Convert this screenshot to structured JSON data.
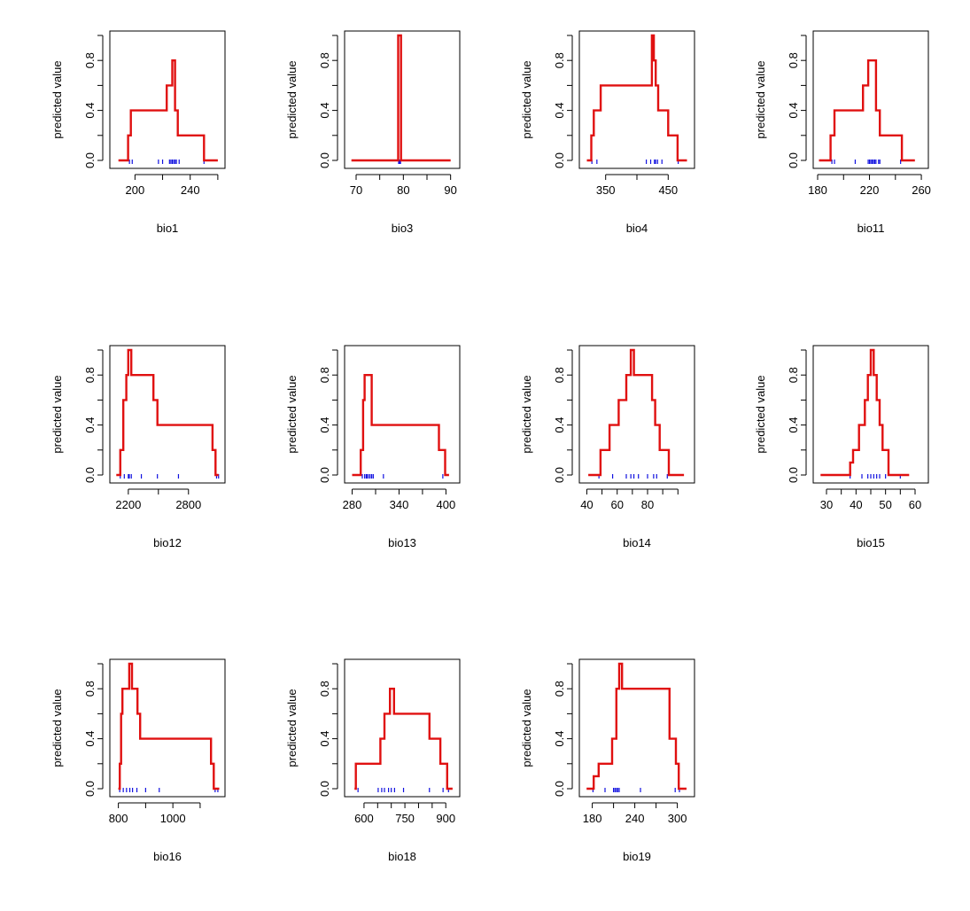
{
  "figure": {
    "curve_color": "#e01010",
    "rug_color": "#1010e0"
  },
  "chart_data": [
    {
      "type": "line",
      "title": "",
      "xlabel": "bio1",
      "ylabel": "predicted value",
      "xlim": [
        185,
        262
      ],
      "ylim": [
        0,
        1
      ],
      "xticks": [
        180,
        200,
        220,
        240,
        260
      ],
      "xticklabels": [
        "",
        "200",
        "",
        "240",
        ""
      ],
      "yticks": [
        0,
        0.2,
        0.4,
        0.6,
        0.8,
        1.0
      ],
      "yticklabels": [
        "0.0",
        "",
        "0.4",
        "",
        "0.8",
        ""
      ],
      "series": [
        {
          "x": [
            188,
            195,
            195,
            197,
            197,
            223,
            223,
            227,
            227,
            229,
            229,
            231,
            231,
            250,
            250,
            260
          ],
          "y": [
            0,
            0,
            0.2,
            0.2,
            0.4,
            0.4,
            0.6,
            0.6,
            0.8,
            0.8,
            0.4,
            0.4,
            0.2,
            0.2,
            0,
            0
          ]
        }
      ],
      "rug": [
        196,
        198,
        217,
        220,
        225,
        226,
        227,
        228,
        229,
        230,
        232,
        250
      ]
    },
    {
      "type": "line",
      "title": "",
      "xlabel": "bio3",
      "ylabel": "predicted value",
      "xlim": [
        68.5,
        91
      ],
      "ylim": [
        0,
        1
      ],
      "xticks": [
        70,
        75,
        80,
        85,
        90
      ],
      "xticklabels": [
        "70",
        "",
        "80",
        "",
        "90"
      ],
      "yticks": [
        0,
        0.2,
        0.4,
        0.6,
        0.8,
        1.0
      ],
      "yticklabels": [
        "0.0",
        "",
        "0.4",
        "",
        "0.8",
        ""
      ],
      "series": [
        {
          "x": [
            69,
            78.9,
            78.9,
            79.5,
            79.5,
            90
          ],
          "y": [
            0,
            0,
            1,
            1,
            0,
            0
          ]
        }
      ],
      "rug": [
        79,
        79.2,
        79.4
      ]
    },
    {
      "type": "line",
      "title": "",
      "xlabel": "bio4",
      "ylabel": "predicted value",
      "xlim": [
        315,
        485
      ],
      "ylim": [
        0,
        1
      ],
      "xticks": [
        350,
        400,
        450
      ],
      "xticklabels": [
        "350",
        "",
        "450"
      ],
      "yticks": [
        0,
        0.2,
        0.4,
        0.6,
        0.8,
        1.0
      ],
      "yticklabels": [
        "0.0",
        "",
        "0.4",
        "",
        "0.8",
        ""
      ],
      "series": [
        {
          "x": [
            320,
            327,
            327,
            331,
            331,
            342,
            342,
            424,
            424,
            427,
            427,
            430,
            430,
            434,
            434,
            450,
            450,
            465,
            465,
            470,
            470,
            480
          ],
          "y": [
            0,
            0,
            0.2,
            0.2,
            0.4,
            0.4,
            0.6,
            0.6,
            1,
            1,
            0.8,
            0.8,
            0.6,
            0.6,
            0.4,
            0.4,
            0.2,
            0.2,
            0,
            0,
            0,
            0
          ]
        }
      ],
      "rug": [
        328,
        336,
        415,
        422,
        428,
        430,
        433,
        440,
        466
      ]
    },
    {
      "type": "line",
      "title": "",
      "xlabel": "bio11",
      "ylabel": "predicted value",
      "xlim": [
        180,
        262
      ],
      "ylim": [
        0,
        1
      ],
      "xticks": [
        180,
        200,
        220,
        240,
        260
      ],
      "xticklabels": [
        "180",
        "",
        "220",
        "",
        "260"
      ],
      "yticks": [
        0,
        0.2,
        0.4,
        0.6,
        0.8,
        1.0
      ],
      "yticklabels": [
        "0.0",
        "",
        "0.4",
        "",
        "0.8",
        ""
      ],
      "series": [
        {
          "x": [
            181,
            190,
            190,
            193,
            193,
            215,
            215,
            219,
            219,
            225,
            225,
            228,
            228,
            245,
            245,
            255
          ],
          "y": [
            0,
            0,
            0.2,
            0.2,
            0.4,
            0.4,
            0.6,
            0.6,
            0.8,
            0.8,
            0.4,
            0.4,
            0.2,
            0.2,
            0,
            0
          ]
        }
      ],
      "rug": [
        191,
        193,
        209,
        219,
        220,
        221,
        222,
        223,
        224,
        225,
        227,
        228,
        244
      ]
    },
    {
      "type": "line",
      "title": "",
      "xlabel": "bio12",
      "ylabel": "predicted value",
      "xlim": [
        2060,
        3120
      ],
      "ylim": [
        0,
        1
      ],
      "xticks": [
        2200,
        2500,
        2800
      ],
      "xticklabels": [
        "2200",
        "",
        "2800"
      ],
      "yticks": [
        0,
        0.2,
        0.4,
        0.6,
        0.8,
        1.0
      ],
      "yticklabels": [
        "0.0",
        "",
        "0.4",
        "",
        "0.8",
        ""
      ],
      "series": [
        {
          "x": [
            2080,
            2120,
            2120,
            2150,
            2150,
            2180,
            2180,
            2200,
            2200,
            2230,
            2230,
            2450,
            2450,
            2490,
            2490,
            3040,
            3040,
            3070,
            3070,
            3100
          ],
          "y": [
            0,
            0,
            0.2,
            0.2,
            0.6,
            0.6,
            0.8,
            0.8,
            1,
            1,
            0.8,
            0.8,
            0.6,
            0.6,
            0.4,
            0.4,
            0.2,
            0.2,
            0,
            0
          ]
        }
      ],
      "rug": [
        2120,
        2160,
        2200,
        2210,
        2230,
        2330,
        2490,
        2700,
        3080,
        3100
      ]
    },
    {
      "type": "line",
      "title": "",
      "xlabel": "bio13",
      "ylabel": "predicted value",
      "xlim": [
        276,
        412
      ],
      "ylim": [
        0,
        1
      ],
      "xticks": [
        280,
        310,
        340,
        370,
        400
      ],
      "xticklabels": [
        "280",
        "",
        "340",
        "",
        "400"
      ],
      "yticks": [
        0,
        0.2,
        0.4,
        0.6,
        0.8,
        1.0
      ],
      "yticklabels": [
        "0.0",
        "",
        "0.4",
        "",
        "0.8",
        ""
      ],
      "series": [
        {
          "x": [
            280,
            291,
            291,
            294,
            294,
            296,
            296,
            305,
            305,
            391,
            391,
            399,
            399,
            404
          ],
          "y": [
            0,
            0,
            0.2,
            0.2,
            0.6,
            0.6,
            0.8,
            0.8,
            0.4,
            0.4,
            0.2,
            0.2,
            0,
            0
          ]
        }
      ],
      "rug": [
        293,
        296,
        298,
        299,
        301,
        303,
        305,
        307,
        320,
        396
      ]
    },
    {
      "type": "line",
      "title": "",
      "xlabel": "bio14",
      "ylabel": "predicted value",
      "xlim": [
        38,
        108
      ],
      "ylim": [
        0,
        1
      ],
      "xticks": [
        40,
        50,
        60,
        70,
        80,
        90,
        100
      ],
      "xticklabels": [
        "40",
        "",
        "60",
        "",
        "80",
        "",
        ""
      ],
      "yticks": [
        0,
        0.2,
        0.4,
        0.6,
        0.8,
        1.0
      ],
      "yticklabels": [
        "0.0",
        "",
        "0.4",
        "",
        "0.8",
        ""
      ],
      "series": [
        {
          "x": [
            41,
            49,
            49,
            55,
            55,
            61,
            61,
            66,
            66,
            69,
            69,
            71,
            71,
            79,
            79,
            83,
            83,
            85,
            85,
            88,
            88,
            94,
            94,
            104
          ],
          "y": [
            0,
            0,
            0.2,
            0.2,
            0.4,
            0.4,
            0.6,
            0.6,
            0.8,
            0.8,
            1,
            1,
            0.8,
            0.8,
            0.8,
            0.8,
            0.6,
            0.6,
            0.4,
            0.4,
            0.2,
            0.2,
            0,
            0
          ]
        }
      ],
      "rug": [
        48,
        57,
        66,
        69,
        71,
        74,
        80,
        84,
        86,
        93
      ]
    },
    {
      "type": "line",
      "title": "",
      "xlabel": "bio15",
      "ylabel": "predicted value",
      "xlim": [
        27,
        63
      ],
      "ylim": [
        0,
        1
      ],
      "xticks": [
        30,
        35,
        40,
        45,
        50,
        55,
        60
      ],
      "xticklabels": [
        "30",
        "",
        "40",
        "",
        "50",
        "",
        "60"
      ],
      "yticks": [
        0,
        0.2,
        0.4,
        0.6,
        0.8,
        1.0
      ],
      "yticklabels": [
        "0.0",
        "",
        "0.4",
        "",
        "0.8",
        ""
      ],
      "series": [
        {
          "x": [
            28,
            38,
            38,
            39,
            39,
            41,
            41,
            43,
            43,
            44,
            44,
            45,
            45,
            46,
            46,
            47,
            47,
            48,
            48,
            49,
            49,
            51,
            51,
            58
          ],
          "y": [
            0,
            0,
            0.1,
            0.1,
            0.2,
            0.2,
            0.4,
            0.4,
            0.6,
            0.6,
            0.8,
            0.8,
            1,
            1,
            0.8,
            0.8,
            0.6,
            0.6,
            0.4,
            0.4,
            0.2,
            0.2,
            0,
            0
          ]
        }
      ],
      "rug": [
        38,
        42,
        44,
        45,
        46,
        47,
        48,
        50,
        55
      ]
    },
    {
      "type": "line",
      "title": "",
      "xlabel": "bio16",
      "ylabel": "predicted value",
      "xlim": [
        785,
        1175
      ],
      "ylim": [
        0,
        1
      ],
      "xticks": [
        800,
        900,
        1000,
        1100
      ],
      "xticklabels": [
        "800",
        "",
        "1000",
        ""
      ],
      "yticks": [
        0,
        0.2,
        0.4,
        0.6,
        0.8,
        1.0
      ],
      "yticklabels": [
        "0.0",
        "",
        "0.4",
        "",
        "0.8",
        ""
      ],
      "series": [
        {
          "x": [
            800,
            805,
            805,
            810,
            810,
            815,
            815,
            840,
            840,
            850,
            850,
            870,
            870,
            880,
            880,
            1140,
            1140,
            1150,
            1150,
            1160,
            1160,
            1170
          ],
          "y": [
            0,
            0,
            0.2,
            0.2,
            0.6,
            0.6,
            0.8,
            0.8,
            1,
            1,
            0.8,
            0.8,
            0.6,
            0.6,
            0.4,
            0.4,
            0.2,
            0.2,
            0,
            0,
            0,
            0
          ]
        }
      ],
      "rug": [
        805,
        818,
        830,
        842,
        852,
        868,
        900,
        950,
        1155,
        1165
      ]
    },
    {
      "type": "line",
      "title": "",
      "xlabel": "bio18",
      "ylabel": "predicted value",
      "xlim": [
        545,
        935
      ],
      "ylim": [
        0,
        1
      ],
      "xticks": [
        600,
        650,
        700,
        750,
        800,
        850,
        900
      ],
      "xticklabels": [
        "600",
        "",
        "",
        "750",
        "",
        "",
        "900"
      ],
      "yticks": [
        0,
        0.2,
        0.4,
        0.6,
        0.8,
        1.0
      ],
      "yticklabels": [
        "0.0",
        "",
        "0.4",
        "",
        "0.8",
        ""
      ],
      "series": [
        {
          "x": [
            565,
            570,
            570,
            660,
            660,
            675,
            675,
            695,
            695,
            710,
            710,
            840,
            840,
            880,
            880,
            905,
            905,
            925
          ],
          "y": [
            0,
            0,
            0.2,
            0.2,
            0.4,
            0.4,
            0.6,
            0.6,
            0.8,
            0.8,
            0.6,
            0.6,
            0.4,
            0.4,
            0.2,
            0.2,
            0,
            0
          ]
        }
      ],
      "rug": [
        578,
        652,
        665,
        675,
        690,
        700,
        712,
        745,
        840,
        890,
        910
      ]
    },
    {
      "type": "line",
      "title": "",
      "xlabel": "bio19",
      "ylabel": "predicted value",
      "xlim": [
        168,
        318
      ],
      "ylim": [
        0,
        1
      ],
      "xticks": [
        180,
        210,
        240,
        270,
        300
      ],
      "xticklabels": [
        "180",
        "",
        "240",
        "",
        "300"
      ],
      "yticks": [
        0,
        0.2,
        0.4,
        0.6,
        0.8,
        1.0
      ],
      "yticklabels": [
        "0.0",
        "",
        "0.4",
        "",
        "0.8",
        ""
      ],
      "series": [
        {
          "x": [
            172,
            182,
            182,
            189,
            189,
            208,
            208,
            214,
            214,
            218,
            218,
            222,
            222,
            289,
            289,
            298,
            298,
            302,
            302,
            313
          ],
          "y": [
            0,
            0,
            0.1,
            0.1,
            0.2,
            0.2,
            0.4,
            0.4,
            0.8,
            0.8,
            1,
            1,
            0.8,
            0.8,
            0.4,
            0.4,
            0.2,
            0.2,
            0,
            0
          ]
        }
      ],
      "rug": [
        181,
        198,
        210,
        212,
        214,
        216,
        218,
        248,
        297,
        303
      ]
    }
  ]
}
